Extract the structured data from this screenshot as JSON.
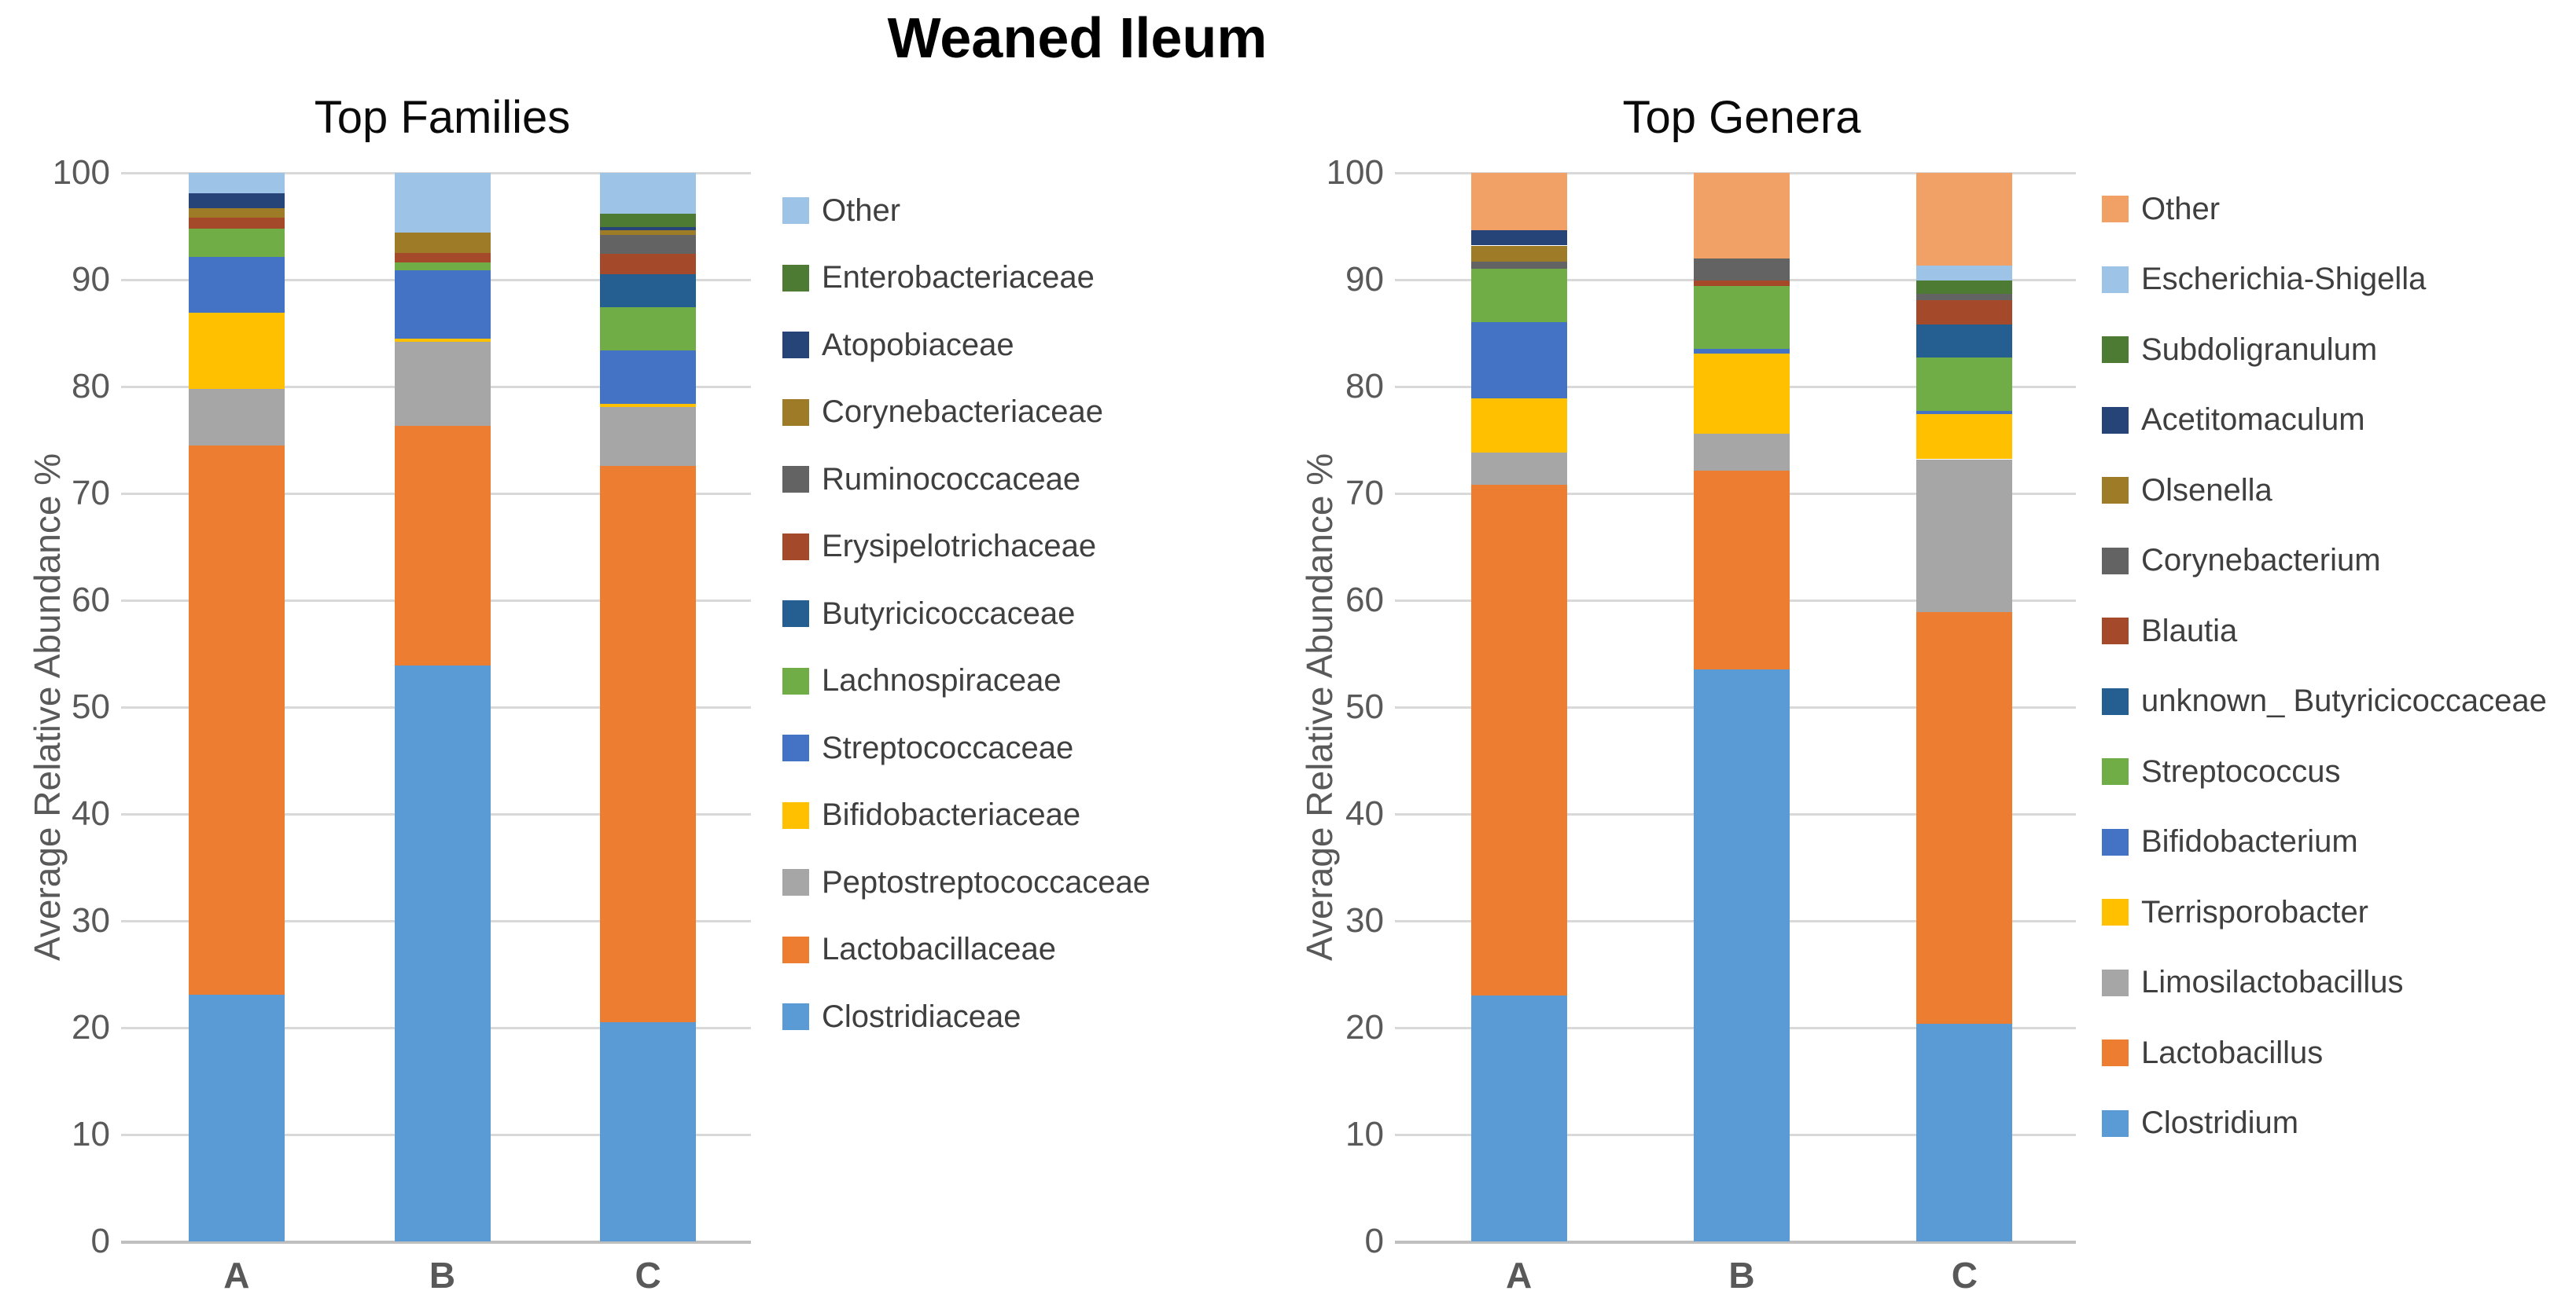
{
  "title": "Weaned Ileum",
  "chart_data": [
    {
      "type": "bar",
      "stacked": true,
      "title": "Top Families",
      "ylabel": "Average Relative Abundance %",
      "xlabel": "",
      "categories": [
        "A",
        "B",
        "C"
      ],
      "ylim": [
        0,
        100
      ],
      "yticks": [
        0,
        10,
        20,
        30,
        40,
        50,
        60,
        70,
        80,
        90,
        100
      ],
      "grid": true,
      "legend_position": "right",
      "series": [
        {
          "name": "Other",
          "color": "#9DC3E6",
          "values": [
            1.9,
            5.6,
            3.8
          ]
        },
        {
          "name": "Enterobacteriaceae",
          "color": "#4E7B33",
          "values": [
            0,
            0,
            1.3
          ]
        },
        {
          "name": "Atopobiaceae",
          "color": "#264478",
          "values": [
            1.4,
            0,
            0.3
          ]
        },
        {
          "name": "Corynebacteriaceae",
          "color": "#9E7C27",
          "values": [
            0.9,
            1.9,
            0.4
          ]
        },
        {
          "name": "Ruminococcaceae",
          "color": "#636363",
          "values": [
            0,
            0,
            1.8
          ]
        },
        {
          "name": "Erysipelotrichaceae",
          "color": "#A5492B",
          "values": [
            1.0,
            0.9,
            1.9
          ]
        },
        {
          "name": "Butyricicoccaceae",
          "color": "#255E91",
          "values": [
            0,
            0,
            3.1
          ]
        },
        {
          "name": "Lachnospiraceae",
          "color": "#70AD47",
          "values": [
            2.7,
            0.7,
            4.0
          ]
        },
        {
          "name": "Streptococcaceae",
          "color": "#4472C4",
          "values": [
            5.2,
            6.4,
            5.0
          ]
        },
        {
          "name": "Bifidobacteriaceae",
          "color": "#FFC000",
          "values": [
            7.1,
            0.3,
            0.3
          ]
        },
        {
          "name": "Peptostreptococcaceae",
          "color": "#A6A6A6",
          "values": [
            5.3,
            7.9,
            5.5
          ]
        },
        {
          "name": "Lactobacillaceae",
          "color": "#ED7D31",
          "values": [
            51.4,
            22.4,
            52.1
          ]
        },
        {
          "name": "Clostridiaceae",
          "color": "#5B9BD5",
          "values": [
            23.1,
            53.9,
            20.5
          ]
        }
      ]
    },
    {
      "type": "bar",
      "stacked": true,
      "title": "Top Genera",
      "ylabel": "Average Relative Abundance %",
      "xlabel": "",
      "categories": [
        "A",
        "B",
        "C"
      ],
      "ylim": [
        0,
        100
      ],
      "yticks": [
        0,
        10,
        20,
        30,
        40,
        50,
        60,
        70,
        80,
        90,
        100
      ],
      "grid": true,
      "legend_position": "right",
      "series": [
        {
          "name": "Other",
          "color": "#F1A166",
          "values": [
            5.4,
            8.0,
            8.7
          ]
        },
        {
          "name": "Escherichia-Shigella",
          "color": "#9DC3E6",
          "values": [
            0,
            0,
            1.4
          ]
        },
        {
          "name": "Subdoligranulum",
          "color": "#4E7B33",
          "values": [
            0,
            0,
            1.2
          ]
        },
        {
          "name": "Acetitomaculum",
          "color": "#264478",
          "values": [
            1.4,
            0,
            0
          ]
        },
        {
          "name": "Olsenella",
          "color": "#9E7C27",
          "values": [
            1.5,
            0,
            0
          ]
        },
        {
          "name": "Corynebacterium",
          "color": "#636363",
          "values": [
            0.7,
            2.1,
            0.6
          ]
        },
        {
          "name": "Blautia",
          "color": "#A5492B",
          "values": [
            0,
            0.5,
            2.3
          ]
        },
        {
          "name": "unknown_ Butyricicoccaceae",
          "color": "#255E91",
          "values": [
            0,
            0,
            3.1
          ]
        },
        {
          "name": "Streptococcus",
          "color": "#70AD47",
          "values": [
            5.0,
            5.9,
            5.0
          ]
        },
        {
          "name": "Bifidobacterium",
          "color": "#4472C4",
          "values": [
            7.1,
            0.4,
            0.3
          ]
        },
        {
          "name": "Terrisporobacter",
          "color": "#FFC000",
          "values": [
            5.1,
            7.5,
            4.2
          ]
        },
        {
          "name": "Limosilactobacillus",
          "color": "#A6A6A6",
          "values": [
            3.0,
            3.5,
            14.3
          ]
        },
        {
          "name": "Lactobacillus",
          "color": "#ED7D31",
          "values": [
            47.8,
            18.6,
            38.5
          ]
        },
        {
          "name": "Clostridium",
          "color": "#5B9BD5",
          "values": [
            23.0,
            53.5,
            20.4
          ]
        }
      ]
    }
  ]
}
